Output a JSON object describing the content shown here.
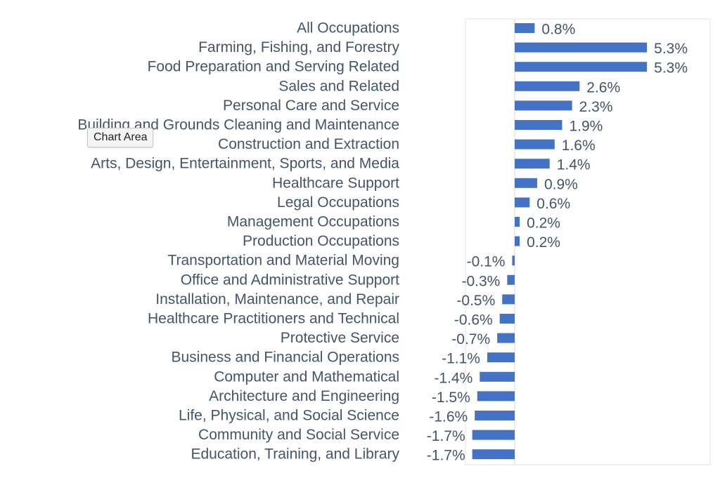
{
  "tooltip": {
    "label": "Chart Area"
  },
  "colors": {
    "bar": "#4472c4",
    "text": "#44546a",
    "plot_border": "#e3e3e3"
  },
  "chart_data": {
    "type": "bar",
    "orientation": "horizontal",
    "categories": [
      "All Occupations",
      "Farming, Fishing, and Forestry",
      "Food Preparation and Serving Related",
      "Sales and Related",
      "Personal Care and Service",
      "Building and Grounds Cleaning and Maintenance",
      "Construction and Extraction",
      "Arts, Design, Entertainment, Sports, and Media",
      "Healthcare Support",
      "Legal Occupations",
      "Management Occupations",
      "Production Occupations",
      "Transportation and Material Moving",
      "Office and Administrative Support",
      "Installation, Maintenance, and Repair",
      "Healthcare Practitioners and Technical",
      "Protective Service",
      "Business and Financial Operations",
      "Computer and Mathematical",
      "Architecture and Engineering",
      "Life, Physical, and Social Science",
      "Community and Social Service",
      "Education, Training, and Library"
    ],
    "values": [
      0.8,
      5.3,
      5.3,
      2.6,
      2.3,
      1.9,
      1.6,
      1.4,
      0.9,
      0.6,
      0.2,
      0.2,
      -0.1,
      -0.3,
      -0.5,
      -0.6,
      -0.7,
      -1.1,
      -1.4,
      -1.5,
      -1.6,
      -1.7,
      -1.7
    ],
    "data_labels": [
      "0.8%",
      "5.3%",
      "5.3%",
      "2.6%",
      "2.3%",
      "1.9%",
      "1.6%",
      "1.4%",
      "0.9%",
      "0.6%",
      "0.2%",
      "0.2%",
      "-0.1%",
      "-0.3%",
      "-0.5%",
      "-0.6%",
      "-0.7%",
      "-1.1%",
      "-1.4%",
      "-1.5%",
      "-1.6%",
      "-1.7%",
      "-1.7%"
    ],
    "xlim": [
      -2.0,
      6.5
    ],
    "grid": false,
    "legend": "none"
  }
}
